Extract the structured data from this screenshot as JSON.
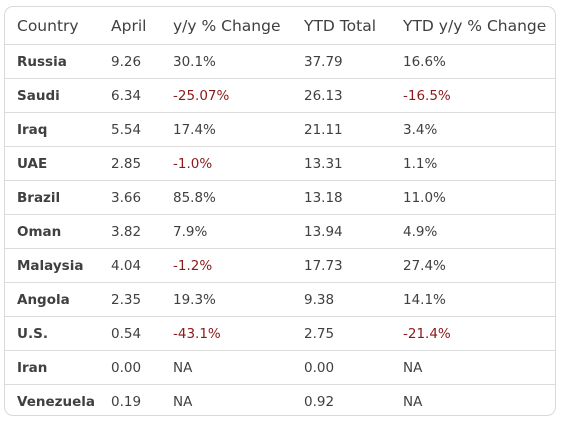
{
  "table": {
    "headers": [
      "Country",
      "April",
      "y/y % Change",
      "YTD Total",
      "YTD y/y % Change"
    ],
    "rows": [
      [
        "Russia",
        "9.26",
        "30.1%",
        "37.79",
        "16.6%"
      ],
      [
        "Saudi",
        "6.34",
        "-25.07%",
        "26.13",
        "-16.5%"
      ],
      [
        "Iraq",
        "5.54",
        "17.4%",
        "21.11",
        "3.4%"
      ],
      [
        "UAE",
        "2.85",
        "-1.0%",
        "13.31",
        "1.1%"
      ],
      [
        "Brazil",
        "3.66",
        "85.8%",
        "13.18",
        "11.0%"
      ],
      [
        "Oman",
        "3.82",
        "7.9%",
        "13.94",
        "4.9%"
      ],
      [
        "Malaysia",
        "4.04",
        "-1.2%",
        "17.73",
        "27.4%"
      ],
      [
        "Angola",
        "2.35",
        "19.3%",
        "9.38",
        "14.1%"
      ],
      [
        "U.S.",
        "0.54",
        "-43.1%",
        "2.75",
        "-21.4%"
      ],
      [
        "Iran",
        "0.00",
        "NA",
        "0.00",
        "NA"
      ],
      [
        "Venezuela",
        "0.19",
        "NA",
        "0.92",
        "NA"
      ]
    ]
  },
  "colors": {
    "text": "#404040",
    "negative": "#8b1a1a",
    "border": "#dcdcdc"
  }
}
